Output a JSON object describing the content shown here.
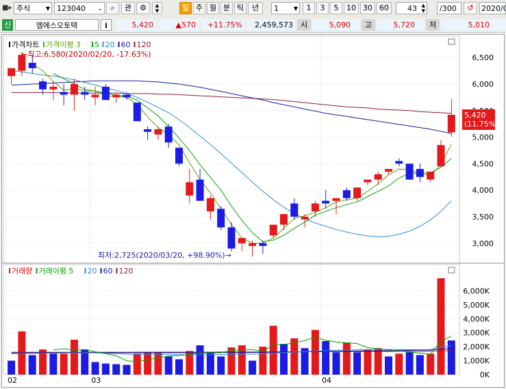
{
  "toolbar": {
    "market_select": "주식",
    "code_input": "123040",
    "gwan_button": "관",
    "tab_day": "일",
    "tab_week": "주",
    "tab_month": "월",
    "tab_minute": "분",
    "tab_tick": "틱",
    "tab_year": "년",
    "period_select": "1",
    "periods": [
      "1",
      "3",
      "5",
      "10",
      "30",
      "60"
    ],
    "count_value": "43",
    "total_value": "/300",
    "date_value": "2020/0"
  },
  "info": {
    "badge": "신",
    "stock_name": "엠에스오토텍",
    "info_button": "i",
    "price": "5,420",
    "change": "▲570",
    "change_pct": "+11.75%",
    "volume": "2,459,573",
    "open_label": "시",
    "open": "5,090",
    "high_label": "고",
    "high": "5,720",
    "low_label": "저",
    "low": "5,010"
  },
  "colors": {
    "up": "#e4191b",
    "down": "#1b1be4",
    "ma3": "#5aa000",
    "ma5": "#00a000",
    "ma20": "#2f8ad8",
    "ma60": "#1a1aa0",
    "ma120": "#8a1a3a"
  },
  "chart_data": [
    {
      "type": "candlestick",
      "legend": [
        "가격차트",
        "가격이평 3",
        "5",
        "20",
        "60",
        "120"
      ],
      "ylim": [
        2650,
        6850
      ],
      "yticks": [
        "3,000",
        "3,500",
        "4,000",
        "4,500",
        "5,000",
        "5,500",
        "6,000",
        "6,500"
      ],
      "ytick_values": [
        3000,
        3500,
        4000,
        4500,
        5000,
        5500,
        6000,
        6500
      ],
      "x_labels": [
        {
          "text": "02",
          "index": 0
        },
        {
          "text": "03",
          "index": 8
        },
        {
          "text": "04",
          "index": 30
        }
      ],
      "annotations": {
        "high": "최고:6,580(2020/02/20, -17.63%)",
        "low": "최저:2,725(2020/03/20, +98.90%)"
      },
      "last_price": "5,420",
      "last_pct": "(11.75%)",
      "candles": [
        {
          "o": 6150,
          "h": 6300,
          "l": 6000,
          "c": 6300
        },
        {
          "o": 6250,
          "h": 6600,
          "l": 6150,
          "c": 6550
        },
        {
          "o": 6400,
          "h": 6550,
          "l": 6200,
          "c": 6300
        },
        {
          "o": 6050,
          "h": 6100,
          "l": 5800,
          "c": 5900
        },
        {
          "o": 5900,
          "h": 6050,
          "l": 5700,
          "c": 5950
        },
        {
          "o": 5850,
          "h": 6000,
          "l": 5600,
          "c": 5800
        },
        {
          "o": 5800,
          "h": 6100,
          "l": 5500,
          "c": 6000
        },
        {
          "o": 5850,
          "h": 5950,
          "l": 5700,
          "c": 5800
        },
        {
          "o": 5750,
          "h": 5950,
          "l": 5600,
          "c": 5800
        },
        {
          "o": 5950,
          "h": 6000,
          "l": 5700,
          "c": 5700
        },
        {
          "o": 5750,
          "h": 5850,
          "l": 5650,
          "c": 5800
        },
        {
          "o": 5800,
          "h": 5850,
          "l": 5700,
          "c": 5750
        },
        {
          "o": 5650,
          "h": 5650,
          "l": 5300,
          "c": 5300
        },
        {
          "o": 5150,
          "h": 5200,
          "l": 4950,
          "c": 5100
        },
        {
          "o": 5050,
          "h": 5200,
          "l": 4950,
          "c": 5150
        },
        {
          "o": 5200,
          "h": 5250,
          "l": 4800,
          "c": 4900
        },
        {
          "o": 4800,
          "h": 4800,
          "l": 4450,
          "c": 4500
        },
        {
          "o": 3900,
          "h": 4400,
          "l": 3750,
          "c": 4150
        },
        {
          "o": 4200,
          "h": 4400,
          "l": 3800,
          "c": 3800
        },
        {
          "o": 3600,
          "h": 3900,
          "l": 3450,
          "c": 3850
        },
        {
          "o": 3650,
          "h": 3700,
          "l": 3250,
          "c": 3300
        },
        {
          "o": 3300,
          "h": 3400,
          "l": 2850,
          "c": 2900
        },
        {
          "o": 3000,
          "h": 3100,
          "l": 2850,
          "c": 3100
        },
        {
          "o": 2950,
          "h": 3050,
          "l": 2750,
          "c": 3000
        },
        {
          "o": 3000,
          "h": 3050,
          "l": 2800,
          "c": 2950
        },
        {
          "o": 3150,
          "h": 3350,
          "l": 3100,
          "c": 3350
        },
        {
          "o": 3350,
          "h": 3550,
          "l": 3250,
          "c": 3550
        },
        {
          "o": 3750,
          "h": 3850,
          "l": 3450,
          "c": 3500
        },
        {
          "o": 3450,
          "h": 3550,
          "l": 3300,
          "c": 3500
        },
        {
          "o": 3600,
          "h": 3800,
          "l": 3500,
          "c": 3750
        },
        {
          "o": 3800,
          "h": 4000,
          "l": 3650,
          "c": 3750
        },
        {
          "o": 3800,
          "h": 3850,
          "l": 3550,
          "c": 3850
        },
        {
          "o": 4000,
          "h": 4050,
          "l": 3800,
          "c": 3850
        },
        {
          "o": 3850,
          "h": 4050,
          "l": 3800,
          "c": 4050
        },
        {
          "o": 4150,
          "h": 4200,
          "l": 4100,
          "c": 4200
        },
        {
          "o": 4200,
          "h": 4350,
          "l": 4100,
          "c": 4300
        },
        {
          "o": 4350,
          "h": 4400,
          "l": 4300,
          "c": 4400
        },
        {
          "o": 4550,
          "h": 4600,
          "l": 4450,
          "c": 4500
        },
        {
          "o": 4500,
          "h": 4500,
          "l": 4200,
          "c": 4200
        },
        {
          "o": 4400,
          "h": 4500,
          "l": 4150,
          "c": 4250
        },
        {
          "o": 4200,
          "h": 4350,
          "l": 4150,
          "c": 4350
        },
        {
          "o": 4450,
          "h": 4950,
          "l": 4450,
          "c": 4850
        },
        {
          "o": 5090,
          "h": 5720,
          "l": 5010,
          "c": 5420
        }
      ],
      "ma3": [
        null,
        null,
        6370,
        6250,
        6050,
        5880,
        5920,
        5870,
        5870,
        5770,
        5770,
        5750,
        5620,
        5380,
        5180,
        5050,
        4850,
        4520,
        4200,
        3950,
        3650,
        3350,
        3100,
        3000,
        3000,
        3100,
        3280,
        3470,
        3520,
        3580,
        3670,
        3780,
        3820,
        3850,
        3980,
        4120,
        4290,
        4400,
        4380,
        4320,
        4270,
        4480,
        4870
      ],
      "ma5": [
        null,
        null,
        null,
        null,
        6200,
        6100,
        6000,
        5900,
        5870,
        5830,
        5790,
        5770,
        5700,
        5550,
        5400,
        5200,
        4980,
        4750,
        4480,
        4240,
        4000,
        3700,
        3430,
        3200,
        3030,
        3060,
        3150,
        3280,
        3400,
        3530,
        3600,
        3670,
        3730,
        3780,
        3880,
        3980,
        4080,
        4230,
        4320,
        4320,
        4330,
        4430,
        4600
      ],
      "ma20": [
        6250,
        6230,
        6200,
        6170,
        6150,
        6120,
        6080,
        6030,
        5980,
        5930,
        5880,
        5820,
        5750,
        5660,
        5560,
        5460,
        5330,
        5180,
        5020,
        4860,
        4690,
        4510,
        4330,
        4150,
        3980,
        3820,
        3680,
        3560,
        3460,
        3380,
        3320,
        3260,
        3210,
        3170,
        3140,
        3120,
        3130,
        3170,
        3230,
        3320,
        3440,
        3600,
        3800
      ],
      "ma60": [
        5980,
        5990,
        6000,
        6010,
        6020,
        6030,
        6040,
        6050,
        6060,
        6060,
        6060,
        6060,
        6060,
        6050,
        6040,
        6020,
        6000,
        5970,
        5940,
        5900,
        5860,
        5820,
        5780,
        5740,
        5700,
        5650,
        5610,
        5570,
        5530,
        5490,
        5450,
        5420,
        5390,
        5360,
        5330,
        5300,
        5270,
        5240,
        5210,
        5180,
        5150,
        5110,
        5070
      ],
      "ma120": [
        5840,
        5840,
        5840,
        5840,
        5840,
        5840,
        5830,
        5830,
        5830,
        5830,
        5830,
        5820,
        5820,
        5820,
        5810,
        5810,
        5800,
        5790,
        5780,
        5770,
        5760,
        5750,
        5740,
        5730,
        5720,
        5710,
        5690,
        5670,
        5650,
        5630,
        5610,
        5590,
        5570,
        5560,
        5550,
        5530,
        5520,
        5510,
        5500,
        5480,
        5470,
        5460,
        5450
      ]
    },
    {
      "type": "bar",
      "legend": [
        "거래량",
        "거래이평 5",
        "20",
        "60",
        "120"
      ],
      "ylim": [
        0,
        6900
      ],
      "yticks": [
        "0K",
        "1,000K",
        "2,000K",
        "3,000K",
        "4,000K",
        "5,000K",
        "6,000K"
      ],
      "ytick_values": [
        0,
        1000,
        2000,
        3000,
        4000,
        5000,
        6000
      ],
      "volumes": [
        1000,
        3100,
        1400,
        1800,
        1500,
        1500,
        2500,
        1800,
        900,
        800,
        750,
        700,
        1500,
        1550,
        1550,
        1300,
        1100,
        1700,
        2100,
        1600,
        1300,
        1950,
        2100,
        1000,
        2000,
        3500,
        2200,
        2600,
        1900,
        3200,
        2400,
        1600,
        2300,
        1600,
        1800,
        1900,
        1300,
        1500,
        1600,
        1400,
        1500,
        6900,
        2450
      ],
      "directions": [
        "d",
        "u",
        "d",
        "u",
        "d",
        "u",
        "u",
        "d",
        "d",
        "d",
        "d",
        "d",
        "u",
        "u",
        "u",
        "d",
        "d",
        "u",
        "d",
        "d",
        "d",
        "u",
        "u",
        "d",
        "u",
        "u",
        "d",
        "u",
        "d",
        "u",
        "d",
        "d",
        "u",
        "d",
        "u",
        "u",
        "d",
        "u",
        "d",
        "d",
        "u",
        "u",
        "d"
      ],
      "ma5": [
        null,
        null,
        null,
        null,
        1760,
        1860,
        1740,
        1800,
        1640,
        1500,
        1350,
        990,
        930,
        1060,
        1200,
        1320,
        1370,
        1440,
        1550,
        1560,
        1560,
        1730,
        1760,
        1790,
        1670,
        2110,
        2160,
        2260,
        2440,
        2680,
        2460,
        2340,
        2280,
        2220,
        1940,
        1840,
        1780,
        1680,
        1620,
        1540,
        1460,
        2380,
        2770
      ],
      "ma20": [
        1500,
        1510,
        1520,
        1530,
        1540,
        1550,
        1560,
        1560,
        1550,
        1530,
        1500,
        1470,
        1450,
        1440,
        1440,
        1440,
        1430,
        1420,
        1420,
        1430,
        1440,
        1450,
        1460,
        1470,
        1490,
        1540,
        1580,
        1620,
        1640,
        1690,
        1720,
        1740,
        1760,
        1780,
        1790,
        1810,
        1800,
        1800,
        1790,
        1790,
        1800,
        1990,
        2050
      ],
      "ma60": [
        1550,
        1550,
        1560,
        1560,
        1560,
        1570,
        1570,
        1570,
        1570,
        1570,
        1570,
        1570,
        1570,
        1570,
        1570,
        1570,
        1570,
        1570,
        1570,
        1580,
        1580,
        1580,
        1590,
        1590,
        1600,
        1610,
        1620,
        1630,
        1640,
        1650,
        1660,
        1670,
        1680,
        1690,
        1700,
        1710,
        1720,
        1730,
        1740,
        1750,
        1760,
        1830,
        1860
      ],
      "ma120": [
        1600,
        1600,
        1600,
        1600,
        1600,
        1600,
        1600,
        1600,
        1600,
        1600,
        1600,
        1600,
        1610,
        1610,
        1610,
        1610,
        1610,
        1610,
        1610,
        1610,
        1620,
        1620,
        1620,
        1620,
        1620,
        1630,
        1630,
        1630,
        1640,
        1640,
        1640,
        1650,
        1650,
        1650,
        1660,
        1660,
        1660,
        1670,
        1670,
        1670,
        1680,
        1700,
        1710
      ]
    }
  ]
}
